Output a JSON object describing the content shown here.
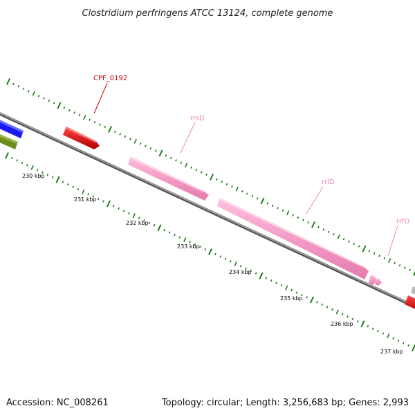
{
  "title": "Clostridium perfringens ATCC 13124, complete genome",
  "footer": {
    "accession": "Accession: NC_008261",
    "summary": "Topology: circular; Length: 3,256,683 bp; Genes: 2,993"
  },
  "ruler_labels": [
    "230 kbp",
    "231 kbp",
    "232 kbp",
    "233 kbp",
    "234 kbp",
    "235 kbp",
    "236 kbp",
    "237 kbp"
  ],
  "gene_labels": [
    {
      "name": "CPF_0192",
      "color": "#cc0000"
    },
    {
      "name": "rrsD",
      "color": "#ee88bb"
    },
    {
      "name": "rrlD",
      "color": "#ee88bb"
    },
    {
      "name": "rrfD",
      "color": "#ee88bb"
    }
  ],
  "colors": {
    "backbone": "#808080",
    "tick": "#1a7a1a",
    "cds_red": "#e60000",
    "rrna_pink": "#ff99cc",
    "blue_feature": "#1a1aee",
    "olive_feature": "#6e8c1e",
    "gray_feature": "#bbbbbb"
  }
}
